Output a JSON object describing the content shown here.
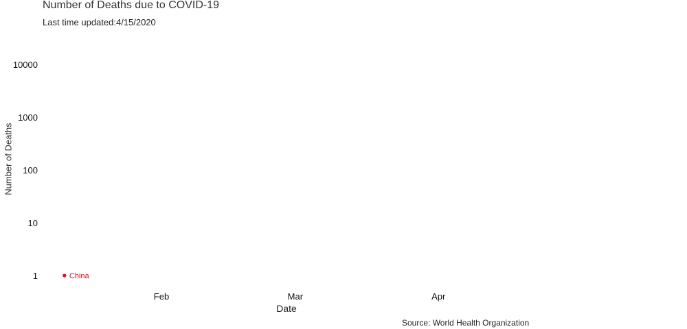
{
  "chart_data": {
    "type": "scatter",
    "title": "Number of Deaths due to COVID-19",
    "subtitle": "Last time updated:4/15/2020",
    "xlabel": "Date",
    "ylabel": "Number of Deaths",
    "source": "Source: World Health Organization",
    "y_scale": "log",
    "y_ticks": [
      1,
      10,
      100,
      1000,
      10000
    ],
    "y_tick_labels": [
      "1",
      "10",
      "100",
      "1000",
      "10000"
    ],
    "x_ticks": [
      "2020-02-01",
      "2020-03-01",
      "2020-04-01"
    ],
    "x_tick_labels": [
      "Feb",
      "Mar",
      "Apr"
    ],
    "xlim": [
      "2020-01-11",
      "2020-04-15"
    ],
    "grid": false,
    "legend": "none",
    "series": [
      {
        "name": "China",
        "color": "#e8101a",
        "points": [
          {
            "x": "2020-01-11",
            "y": 1
          }
        ]
      }
    ]
  }
}
